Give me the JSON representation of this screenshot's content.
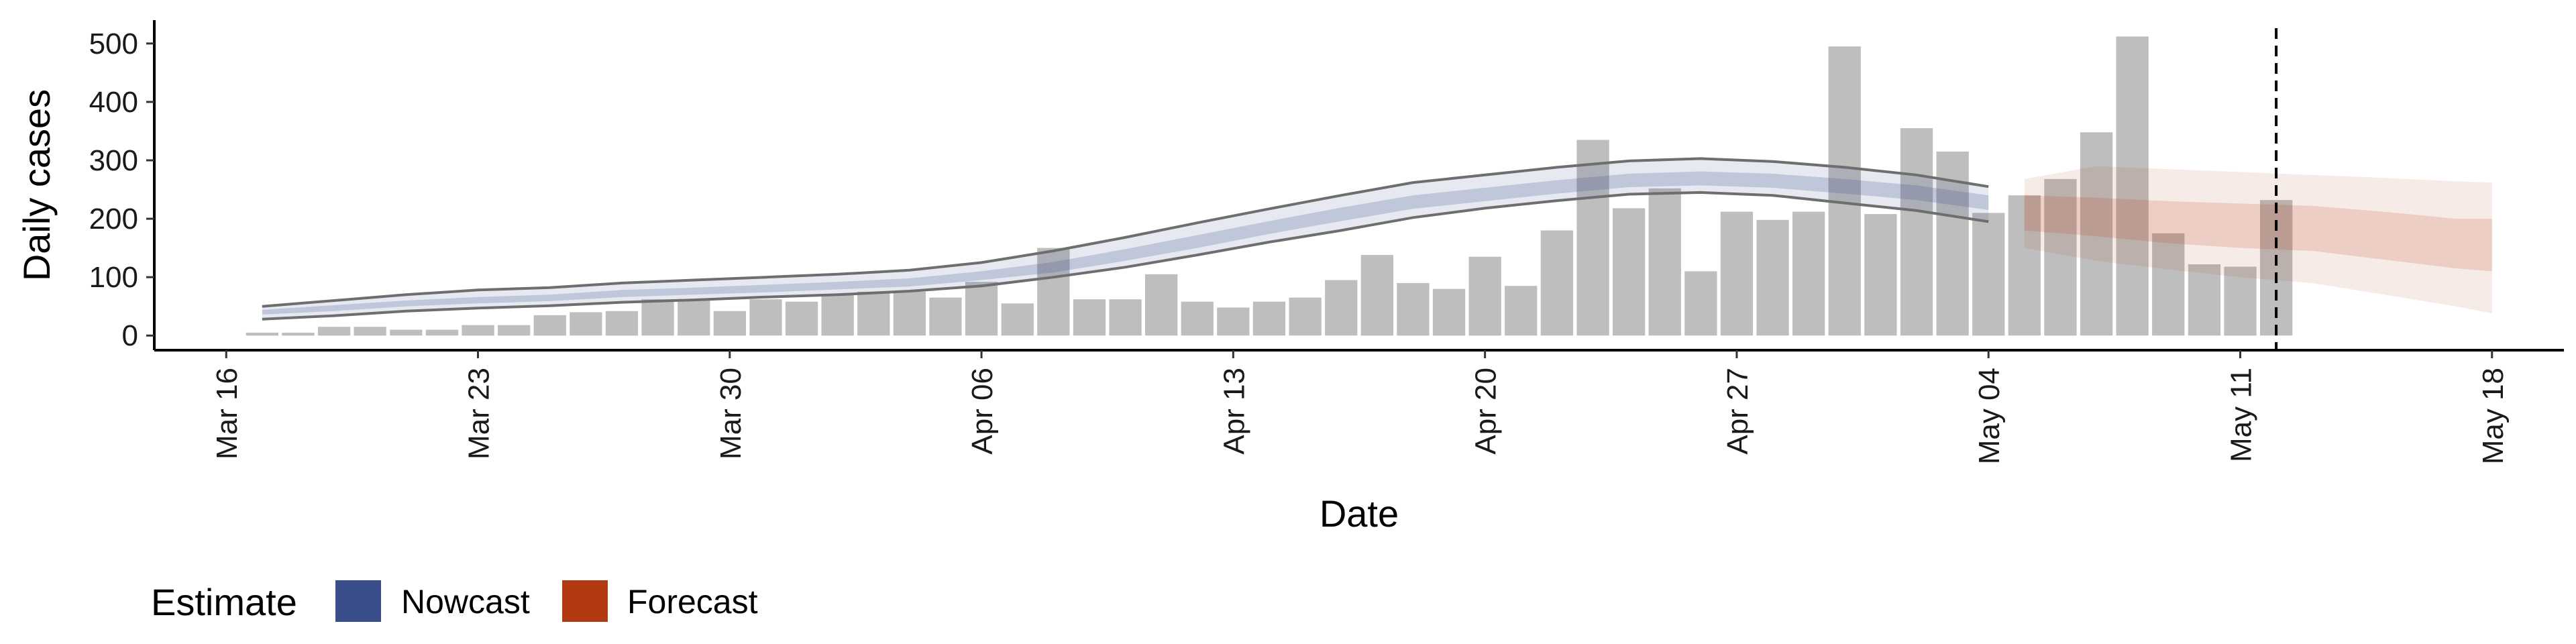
{
  "chart_data": {
    "type": "bar",
    "xlabel": "Date",
    "ylabel": "Daily cases",
    "ylim": [
      -25,
      540
    ],
    "yticks": [
      0,
      100,
      200,
      300,
      400,
      500
    ],
    "xlim": [
      "2020-03-14",
      "2020-05-20"
    ],
    "xticks": [
      {
        "date": "2020-03-16",
        "label": "Mar 16"
      },
      {
        "date": "2020-03-23",
        "label": "Mar 23"
      },
      {
        "date": "2020-03-30",
        "label": "Mar 30"
      },
      {
        "date": "2020-04-06",
        "label": "Apr 06"
      },
      {
        "date": "2020-04-13",
        "label": "Apr 13"
      },
      {
        "date": "2020-04-20",
        "label": "Apr 20"
      },
      {
        "date": "2020-04-27",
        "label": "Apr 27"
      },
      {
        "date": "2020-05-04",
        "label": "May 04"
      },
      {
        "date": "2020-05-11",
        "label": "May 11"
      },
      {
        "date": "2020-05-18",
        "label": "May 18"
      }
    ],
    "grid": false,
    "colors": {
      "bars": "#bebebe",
      "nowcast": "#3a4e8c",
      "forecast": "#b23a12",
      "interval_line": "#6e6e6e"
    },
    "cases": {
      "dates": [
        "2020-03-17",
        "2020-03-18",
        "2020-03-19",
        "2020-03-20",
        "2020-03-21",
        "2020-03-22",
        "2020-03-23",
        "2020-03-24",
        "2020-03-25",
        "2020-03-26",
        "2020-03-27",
        "2020-03-28",
        "2020-03-29",
        "2020-03-30",
        "2020-03-31",
        "2020-04-01",
        "2020-04-02",
        "2020-04-03",
        "2020-04-04",
        "2020-04-05",
        "2020-04-06",
        "2020-04-07",
        "2020-04-08",
        "2020-04-09",
        "2020-04-10",
        "2020-04-11",
        "2020-04-12",
        "2020-04-13",
        "2020-04-14",
        "2020-04-15",
        "2020-04-16",
        "2020-04-17",
        "2020-04-18",
        "2020-04-19",
        "2020-04-20",
        "2020-04-21",
        "2020-04-22",
        "2020-04-23",
        "2020-04-24",
        "2020-04-25",
        "2020-04-26",
        "2020-04-27",
        "2020-04-28",
        "2020-04-29",
        "2020-04-30",
        "2020-05-01",
        "2020-05-02",
        "2020-05-03",
        "2020-05-04",
        "2020-05-05",
        "2020-05-06",
        "2020-05-07",
        "2020-05-08",
        "2020-05-09",
        "2020-05-10",
        "2020-05-11",
        "2020-05-12"
      ],
      "values": [
        5,
        5,
        15,
        15,
        10,
        10,
        18,
        18,
        35,
        40,
        42,
        62,
        62,
        42,
        62,
        58,
        70,
        75,
        75,
        65,
        92,
        55,
        150,
        62,
        62,
        105,
        58,
        48,
        58,
        65,
        95,
        138,
        90,
        80,
        135,
        85,
        180,
        335,
        218,
        252,
        110,
        212,
        198,
        212,
        495,
        208,
        355,
        315,
        210,
        240,
        268,
        348,
        512,
        175,
        122,
        118,
        232
      ]
    },
    "nowcast": {
      "dates": [
        "2020-03-17",
        "2020-03-19",
        "2020-03-21",
        "2020-03-23",
        "2020-03-25",
        "2020-03-27",
        "2020-03-29",
        "2020-03-31",
        "2020-04-02",
        "2020-04-04",
        "2020-04-06",
        "2020-04-08",
        "2020-04-10",
        "2020-04-12",
        "2020-04-14",
        "2020-04-16",
        "2020-04-18",
        "2020-04-20",
        "2020-04-22",
        "2020-04-24",
        "2020-04-26",
        "2020-04-28",
        "2020-04-30",
        "2020-05-02",
        "2020-05-04"
      ],
      "upper90": [
        50,
        60,
        70,
        78,
        82,
        90,
        95,
        100,
        105,
        112,
        125,
        145,
        168,
        193,
        217,
        240,
        262,
        275,
        288,
        299,
        303,
        298,
        288,
        275,
        255
      ],
      "upper50": [
        44,
        52,
        60,
        66,
        70,
        78,
        82,
        87,
        92,
        98,
        110,
        126,
        148,
        172,
        196,
        219,
        240,
        253,
        266,
        277,
        281,
        277,
        268,
        257,
        240
      ],
      "lower50": [
        36,
        42,
        50,
        55,
        59,
        66,
        70,
        74,
        79,
        84,
        95,
        108,
        128,
        150,
        174,
        196,
        217,
        230,
        243,
        254,
        257,
        253,
        243,
        232,
        215
      ],
      "lower90": [
        28,
        34,
        42,
        47,
        51,
        57,
        61,
        66,
        70,
        76,
        85,
        100,
        117,
        138,
        160,
        180,
        202,
        218,
        231,
        242,
        245,
        240,
        227,
        214,
        195
      ]
    },
    "forecast": {
      "dates": [
        "2020-05-05",
        "2020-05-07",
        "2020-05-09",
        "2020-05-11",
        "2020-05-13",
        "2020-05-15",
        "2020-05-17",
        "2020-05-18"
      ],
      "upper90": [
        268,
        290,
        285,
        280,
        275,
        270,
        264,
        262
      ],
      "upper50": [
        240,
        236,
        230,
        226,
        222,
        212,
        200,
        200
      ],
      "lower50": [
        180,
        170,
        158,
        150,
        145,
        130,
        115,
        110
      ],
      "lower90": [
        150,
        128,
        113,
        100,
        90,
        70,
        50,
        38
      ]
    },
    "vline_date": "2020-05-12",
    "legend": {
      "title": "Estimate",
      "position": "bottom-left",
      "items": [
        {
          "label": "Nowcast",
          "color": "#3a4e8c"
        },
        {
          "label": "Forecast",
          "color": "#b23a12"
        }
      ]
    }
  }
}
